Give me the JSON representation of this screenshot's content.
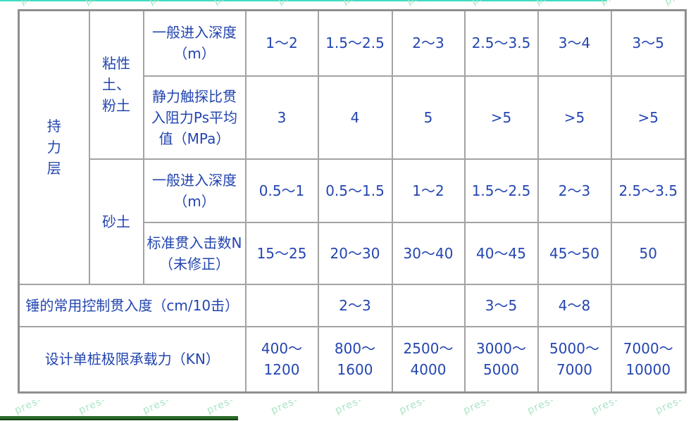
{
  "page": {
    "top_accent_color": "#3fdcc2",
    "bottom_bar_color": "#2a6b2a",
    "watermark": {
      "text": "pres-",
      "color": "#a9e4c6"
    }
  },
  "table": {
    "text_color": "#2345b0",
    "border_color": "#a3a3a3",
    "col1_header": "持\n力\n层",
    "soil_group1": "粘性\n土、\n粉土",
    "soil_group2": "砂土",
    "row_labels": {
      "r1": "一般进入深度\n（m）",
      "r2": "静力触探比贯\n入阻力Ps平均\n值（MPa）",
      "r3": "一般进入深度\n（m）",
      "r4": "标准贯入击数N\n（未修正）",
      "r5": "锤的常用控制贯入度（cm/10击）",
      "r6": "设计单桩极限承载力（KN）"
    },
    "data": {
      "r1": [
        "1～2",
        "1.5～2.5",
        "2～3",
        "2.5～3.5",
        "3～4",
        "3～5"
      ],
      "r2": [
        "3",
        "4",
        "5",
        ">5",
        ">5",
        ">5"
      ],
      "r3": [
        "0.5～1",
        "0.5～1.5",
        "1～2",
        "1.5～2.5",
        "2～3",
        "2.5～3.5"
      ],
      "r4": [
        "15～25",
        "20～30",
        "30～40",
        "40～45",
        "45～50",
        "50"
      ],
      "r5": [
        "",
        "2～3",
        "",
        "3～5",
        "4～8",
        ""
      ],
      "r6": [
        "400～\n1200",
        "800～\n1600",
        "2500～\n4000",
        "3000～\n5000",
        "5000～\n7000",
        "7000～\n10000"
      ]
    }
  }
}
